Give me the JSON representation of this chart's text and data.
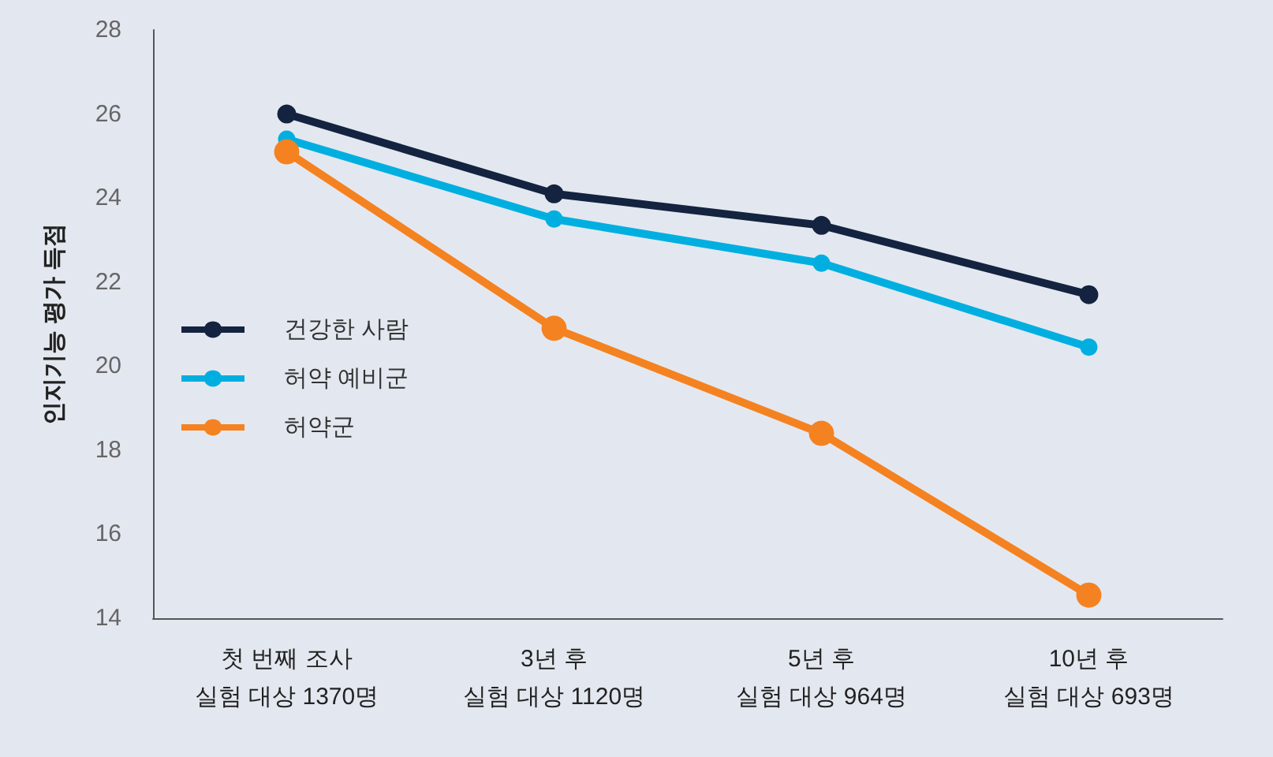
{
  "chart_data": {
    "type": "line",
    "ylabel": "인지기능 평가 득점",
    "categories": [
      "첫 번째 조사\n실험 대상 1370명",
      "3년 후\n실험 대상 1120명",
      "5년 후\n실험 대상 964명",
      "10년 후\n실험 대상 693명"
    ],
    "series": [
      {
        "name": "건강한 사람",
        "color": "#14233f",
        "values": [
          26.0,
          24.1,
          23.35,
          21.7
        ]
      },
      {
        "name": "허약 예비군",
        "color": "#00afe0",
        "values": [
          25.4,
          23.5,
          22.45,
          20.45
        ]
      },
      {
        "name": "허약군",
        "color": "#f58220",
        "values": [
          25.1,
          20.9,
          18.4,
          14.55
        ]
      }
    ],
    "ylim": [
      14,
      28
    ],
    "yticks": [
      14,
      16,
      18,
      20,
      22,
      24,
      26,
      28
    ],
    "grid": false,
    "legend": "left",
    "marker": "circle",
    "line_style": "solid"
  }
}
